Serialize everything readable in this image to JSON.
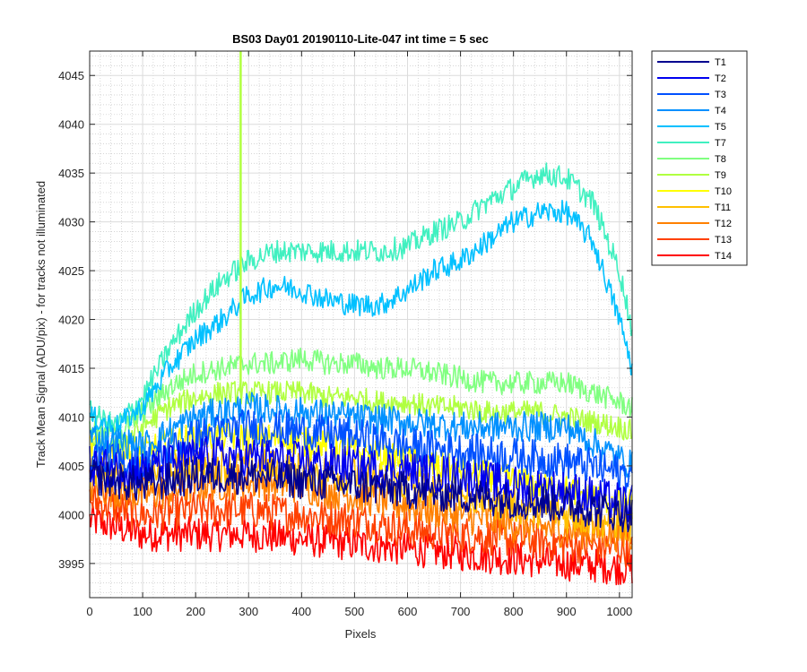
{
  "chart_data": {
    "type": "line",
    "title": "BS03 Day01 20190110-Lite-047 int time = 5 sec",
    "xlabel": "Pixels",
    "ylabel": "Track Mean Signal (ADU/pix) - for tracks not illuminated",
    "xlim": [
      0,
      1024
    ],
    "ylim": [
      3991.5,
      4047.5
    ],
    "xticks": [
      0,
      100,
      200,
      300,
      400,
      500,
      600,
      700,
      800,
      900,
      1000
    ],
    "yticks": [
      3995,
      4000,
      4005,
      4010,
      4015,
      4020,
      4025,
      4030,
      4035,
      4040,
      4045
    ],
    "grid": true,
    "minor_grid": true,
    "legend_position": "outside-right",
    "spike": {
      "series": "T9",
      "x": 285,
      "y_top": 4047.5
    },
    "series": [
      {
        "name": "T1",
        "color": "#00008f",
        "x": [
          0,
          100,
          200,
          300,
          400,
          500,
          600,
          700,
          800,
          900,
          1024
        ],
        "values": [
          4004,
          4003,
          4004,
          4004,
          4003.5,
          4003,
          4002.5,
          4002,
          4001.5,
          4001,
          4000
        ],
        "noise": 1.6
      },
      {
        "name": "T2",
        "color": "#0000ef",
        "x": [
          0,
          100,
          200,
          300,
          400,
          500,
          600,
          700,
          800,
          900,
          1024
        ],
        "values": [
          4005,
          4004.5,
          4006,
          4006,
          4005.5,
          4005,
          4004.5,
          4004,
          4003,
          4002.5,
          4001
        ],
        "noise": 1.7
      },
      {
        "name": "T3",
        "color": "#0050ff",
        "x": [
          0,
          100,
          200,
          300,
          400,
          500,
          600,
          700,
          800,
          900,
          1024
        ],
        "values": [
          4006,
          4005,
          4008,
          4009,
          4008.5,
          4008,
          4007,
          4006.5,
          4006,
          4005.5,
          4004
        ],
        "noise": 1.6
      },
      {
        "name": "T4",
        "color": "#0090ff",
        "x": [
          0,
          100,
          200,
          300,
          400,
          500,
          600,
          700,
          800,
          900,
          1024
        ],
        "values": [
          4008,
          4007,
          4010,
          4011,
          4010.5,
          4010,
          4009.5,
          4009,
          4009,
          4009,
          4005
        ],
        "noise": 1.3
      },
      {
        "name": "T5",
        "color": "#00c0ff",
        "x": [
          0,
          50,
          100,
          150,
          200,
          250,
          300,
          350,
          400,
          450,
          500,
          550,
          600,
          650,
          700,
          750,
          800,
          850,
          900,
          950,
          1000,
          1024
        ],
        "values": [
          4010,
          4009,
          4011,
          4015,
          4018,
          4020,
          4022.5,
          4023.5,
          4023,
          4022,
          4021.5,
          4021.5,
          4023,
          4025,
          4026,
          4028,
          4030,
          4031,
          4031,
          4028,
          4020,
          4015
        ],
        "noise": 1.0
      },
      {
        "name": "T7",
        "color": "#40f0c0",
        "x": [
          0,
          50,
          100,
          150,
          200,
          250,
          300,
          350,
          400,
          450,
          500,
          550,
          600,
          650,
          700,
          750,
          800,
          850,
          900,
          950,
          1000,
          1024
        ],
        "values": [
          4010.5,
          4009,
          4012,
          4017,
          4021,
          4024,
          4026,
          4027,
          4027,
          4027,
          4027,
          4027,
          4027.5,
          4029,
          4030,
          4032,
          4033.5,
          4035,
          4034.5,
          4032,
          4025,
          4019
        ],
        "noise": 1.0
      },
      {
        "name": "T8",
        "color": "#80ff80",
        "x": [
          0,
          50,
          100,
          150,
          200,
          250,
          300,
          350,
          400,
          450,
          500,
          550,
          600,
          650,
          700,
          750,
          800,
          850,
          900,
          950,
          1000,
          1024
        ],
        "values": [
          4009,
          4008,
          4010.5,
          4013,
          4014.5,
          4015,
          4015.5,
          4015.5,
          4016,
          4015.5,
          4015.5,
          4015,
          4015,
          4014.5,
          4014,
          4013.5,
          4013.5,
          4013.5,
          4013.5,
          4012.5,
          4011.5,
          4011
        ],
        "noise": 1.0
      },
      {
        "name": "T9",
        "color": "#b0ff40",
        "x": [
          0,
          50,
          100,
          150,
          200,
          250,
          300,
          350,
          400,
          450,
          500,
          550,
          600,
          650,
          700,
          750,
          800,
          850,
          900,
          950,
          1000,
          1024
        ],
        "values": [
          4008,
          4007,
          4009,
          4011,
          4012,
          4012.5,
          4012.5,
          4012.5,
          4012.5,
          4012,
          4012,
          4011.5,
          4011.5,
          4011,
          4011,
          4010.5,
          4010.5,
          4010.5,
          4010,
          4009.5,
          4009,
          4008.5
        ],
        "noise": 1.0
      },
      {
        "name": "T10",
        "color": "#ffff00",
        "x": [
          0,
          100,
          200,
          300,
          400,
          500,
          600,
          700,
          800,
          900,
          1024
        ],
        "values": [
          4007,
          4006.5,
          4008,
          4008,
          4007.5,
          4006.5,
          4005.5,
          4004.5,
          4003.5,
          4002.5,
          4001
        ],
        "noise": 1.3
      },
      {
        "name": "T11",
        "color": "#ffc000",
        "x": [
          0,
          100,
          200,
          300,
          400,
          500,
          600,
          700,
          800,
          900,
          1024
        ],
        "values": [
          4004.5,
          4004,
          4005,
          4005,
          4004.5,
          4004,
          4003,
          4002,
          4001,
          4000,
          3999
        ],
        "noise": 1.6
      },
      {
        "name": "T12",
        "color": "#ff8000",
        "x": [
          0,
          100,
          200,
          300,
          400,
          500,
          600,
          700,
          800,
          900,
          1024
        ],
        "values": [
          4003,
          4002,
          4003,
          4003.5,
          4003,
          4002,
          4001,
          4000,
          3999,
          3998.5,
          3998
        ],
        "noise": 1.6
      },
      {
        "name": "T13",
        "color": "#ff4000",
        "x": [
          0,
          100,
          200,
          300,
          400,
          500,
          600,
          700,
          800,
          900,
          1024
        ],
        "values": [
          4001.5,
          4000,
          4000.5,
          4000.5,
          4000,
          3999.5,
          3998.5,
          3998,
          3997.5,
          3997,
          3996.5
        ],
        "noise": 1.6
      },
      {
        "name": "T14",
        "color": "#ff0000",
        "x": [
          0,
          100,
          200,
          300,
          400,
          500,
          600,
          700,
          800,
          900,
          1024
        ],
        "values": [
          3999.5,
          3998,
          3998,
          3998,
          3997.5,
          3997,
          3996.5,
          3996,
          3995.5,
          3995,
          3994.5
        ],
        "noise": 1.5
      }
    ]
  }
}
